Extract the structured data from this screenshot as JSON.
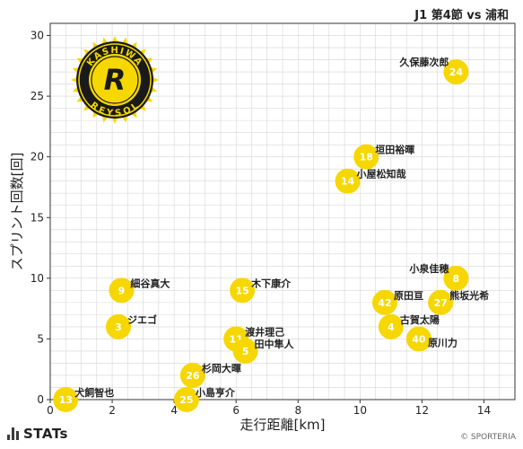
{
  "header": {
    "match": "J1 第4節 vs 浦和"
  },
  "brand": {
    "name": "STATs"
  },
  "credit": {
    "text": "© SPORTERIA"
  },
  "logo": {
    "top_text": "KASHIWA",
    "bottom_text": "REYSOL",
    "letter": "R"
  },
  "colors": {
    "point": "#f6d700",
    "point_label": "#ffffff",
    "grid": "#d5d5d5",
    "axis": "#333333",
    "logo_ring": "#1a1a1a",
    "logo_inner": "#f6d700",
    "logo_letter": "#1a1a1a"
  },
  "chart_data": {
    "type": "scatter",
    "title": "",
    "xlabel": "走行距離[km]",
    "ylabel": "スプリント回数[回]",
    "xlim": [
      0,
      15
    ],
    "ylim": [
      0,
      31
    ],
    "xticks": [
      0,
      2,
      4,
      6,
      8,
      10,
      12,
      14
    ],
    "yticks": [
      0,
      5,
      10,
      15,
      20,
      25,
      30
    ],
    "grid": true,
    "points": [
      {
        "number": "24",
        "name": "久保藤次郎",
        "x": 13.1,
        "y": 27
      },
      {
        "number": "18",
        "name": "垣田裕暉",
        "x": 10.2,
        "y": 20
      },
      {
        "number": "14",
        "name": "小屋松知哉",
        "x": 9.6,
        "y": 18
      },
      {
        "number": "9",
        "name": "細谷真大",
        "x": 2.3,
        "y": 9
      },
      {
        "number": "15",
        "name": "木下康介",
        "x": 6.2,
        "y": 9
      },
      {
        "number": "3",
        "name": "ジエゴ",
        "x": 2.2,
        "y": 6
      },
      {
        "number": "11",
        "name": "渡井理己",
        "x": 6.0,
        "y": 5
      },
      {
        "number": "5",
        "name": "田中隼人",
        "x": 6.3,
        "y": 4
      },
      {
        "number": "26",
        "name": "杉岡大暉",
        "x": 4.6,
        "y": 2
      },
      {
        "number": "13",
        "name": "犬飼智也",
        "x": 0.5,
        "y": 0
      },
      {
        "number": "25",
        "name": "小島亨介",
        "x": 4.4,
        "y": 0
      },
      {
        "number": "8",
        "name": "小泉佳穂",
        "x": 13.1,
        "y": 10
      },
      {
        "number": "42",
        "name": "原田亘",
        "x": 10.8,
        "y": 8
      },
      {
        "number": "27",
        "name": "熊坂光希",
        "x": 12.6,
        "y": 8
      },
      {
        "number": "4",
        "name": "古賀太陽",
        "x": 11.0,
        "y": 6
      },
      {
        "number": "40",
        "name": "原川力",
        "x": 11.9,
        "y": 5
      }
    ]
  }
}
